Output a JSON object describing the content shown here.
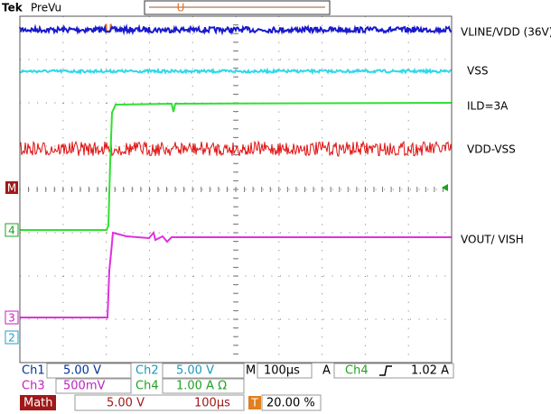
{
  "header": {
    "brand": "Tek",
    "mode": "PreVu",
    "trigger_marker": "U"
  },
  "trace_labels": [
    "VLINE/VDD (36V)",
    "VSS",
    "ILD=3A",
    "VDD-VSS",
    "VOUT/ VISH"
  ],
  "markers": [
    "M",
    "4",
    "3",
    "2"
  ],
  "status": {
    "row1": {
      "ch1": "Ch1",
      "ch1_scale": "5.00 V",
      "ch2": "Ch2",
      "ch2_scale": "5.00 V",
      "timebase_key": "M",
      "timebase": "100µs",
      "trigger_key": "A",
      "trigger_source": "Ch4",
      "trigger_level": "1.02 A"
    },
    "row2": {
      "ch3": "Ch3",
      "ch3_scale": "500mV",
      "ch4": "Ch4",
      "ch4_scale": "1.00 A Ω"
    },
    "row3": {
      "math": "Math",
      "math_scale": "5.00 V",
      "math_time": "100µs",
      "trigger_pos_key": "T",
      "trigger_pos": "20.00 %"
    }
  }
}
